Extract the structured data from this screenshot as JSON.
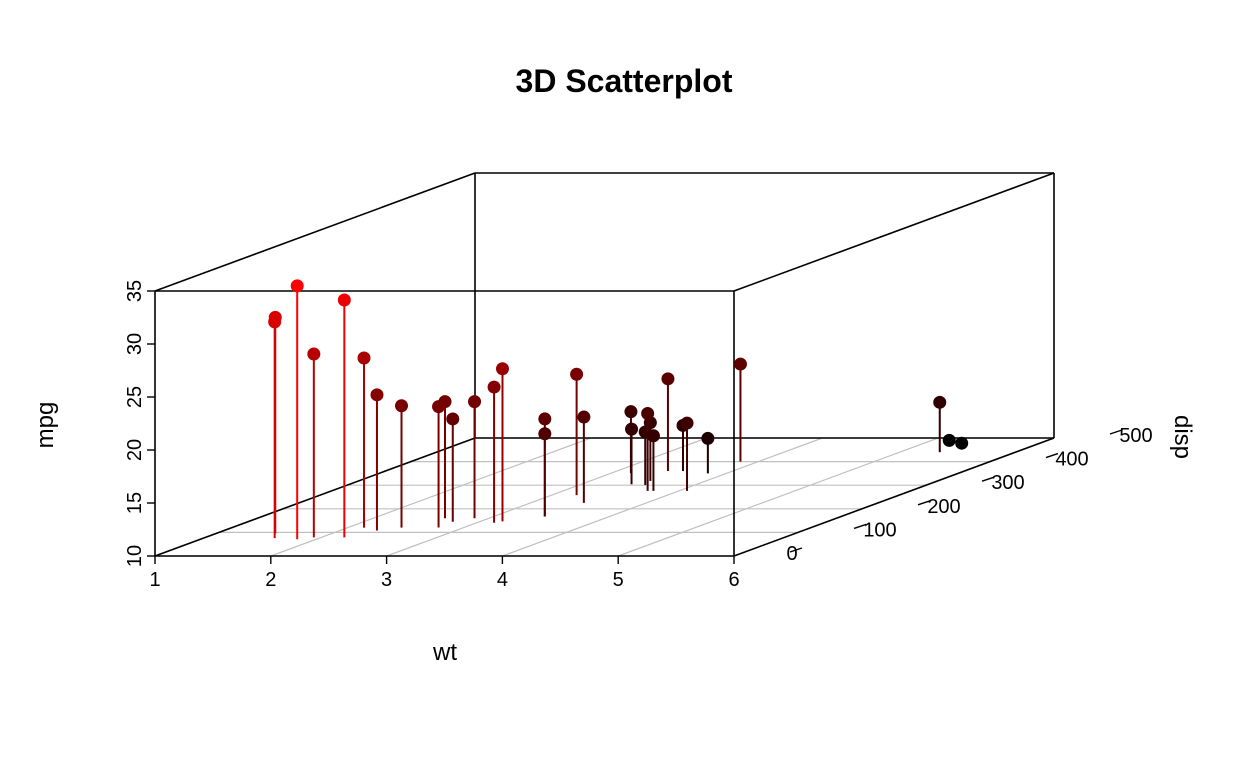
{
  "chart_data": {
    "type": "scatter",
    "subtype": "3d-scatter-with-drop-lines",
    "title": "3D Scatterplot",
    "xlabel": "wt",
    "ylabel": "disp",
    "zlabel": "mpg",
    "xlim": [
      1,
      6
    ],
    "ylim": [
      0,
      500
    ],
    "zlim": [
      10,
      35
    ],
    "x_ticks": [
      "1",
      "2",
      "3",
      "4",
      "5",
      "6"
    ],
    "y_ticks": [
      "0",
      "100",
      "200",
      "300",
      "400",
      "500"
    ],
    "z_ticks": [
      "10",
      "15",
      "20",
      "25",
      "30",
      "35"
    ],
    "grid": true,
    "color_scale": {
      "low": "#000000",
      "high": "#ff0000",
      "by": "mpg"
    },
    "points": [
      {
        "x": 2.62,
        "y": 160,
        "z": 21.0
      },
      {
        "x": 2.875,
        "y": 160,
        "z": 21.0
      },
      {
        "x": 2.32,
        "y": 108,
        "z": 22.8
      },
      {
        "x": 3.215,
        "y": 258,
        "z": 21.4
      },
      {
        "x": 3.44,
        "y": 360,
        "z": 18.7
      },
      {
        "x": 3.46,
        "y": 225,
        "z": 18.1
      },
      {
        "x": 3.57,
        "y": 360,
        "z": 14.3
      },
      {
        "x": 3.19,
        "y": 146.7,
        "z": 24.4
      },
      {
        "x": 3.15,
        "y": 140.8,
        "z": 22.8
      },
      {
        "x": 3.44,
        "y": 167.6,
        "z": 19.2
      },
      {
        "x": 3.44,
        "y": 167.6,
        "z": 17.8
      },
      {
        "x": 4.07,
        "y": 275.8,
        "z": 16.4
      },
      {
        "x": 3.73,
        "y": 275.8,
        "z": 17.3
      },
      {
        "x": 3.78,
        "y": 275.8,
        "z": 15.2
      },
      {
        "x": 5.25,
        "y": 472,
        "z": 10.4
      },
      {
        "x": 5.424,
        "y": 460,
        "z": 10.4
      },
      {
        "x": 5.345,
        "y": 440,
        "z": 14.7
      },
      {
        "x": 2.2,
        "y": 78.7,
        "z": 32.4
      },
      {
        "x": 1.615,
        "y": 75.7,
        "z": 30.4
      },
      {
        "x": 1.835,
        "y": 71.1,
        "z": 33.9
      },
      {
        "x": 2.465,
        "y": 120.1,
        "z": 21.5
      },
      {
        "x": 3.52,
        "y": 318,
        "z": 15.5
      },
      {
        "x": 3.435,
        "y": 304,
        "z": 15.2
      },
      {
        "x": 3.84,
        "y": 350,
        "z": 13.3
      },
      {
        "x": 3.845,
        "y": 400,
        "z": 19.2
      },
      {
        "x": 1.935,
        "y": 79,
        "z": 27.3
      },
      {
        "x": 2.14,
        "y": 120.3,
        "z": 26.0
      },
      {
        "x": 1.513,
        "y": 95.1,
        "z": 30.4
      },
      {
        "x": 3.17,
        "y": 351,
        "z": 15.8
      },
      {
        "x": 2.77,
        "y": 145,
        "z": 19.7
      },
      {
        "x": 3.57,
        "y": 301,
        "z": 15.0
      },
      {
        "x": 2.78,
        "y": 121,
        "z": 21.4
      }
    ]
  }
}
